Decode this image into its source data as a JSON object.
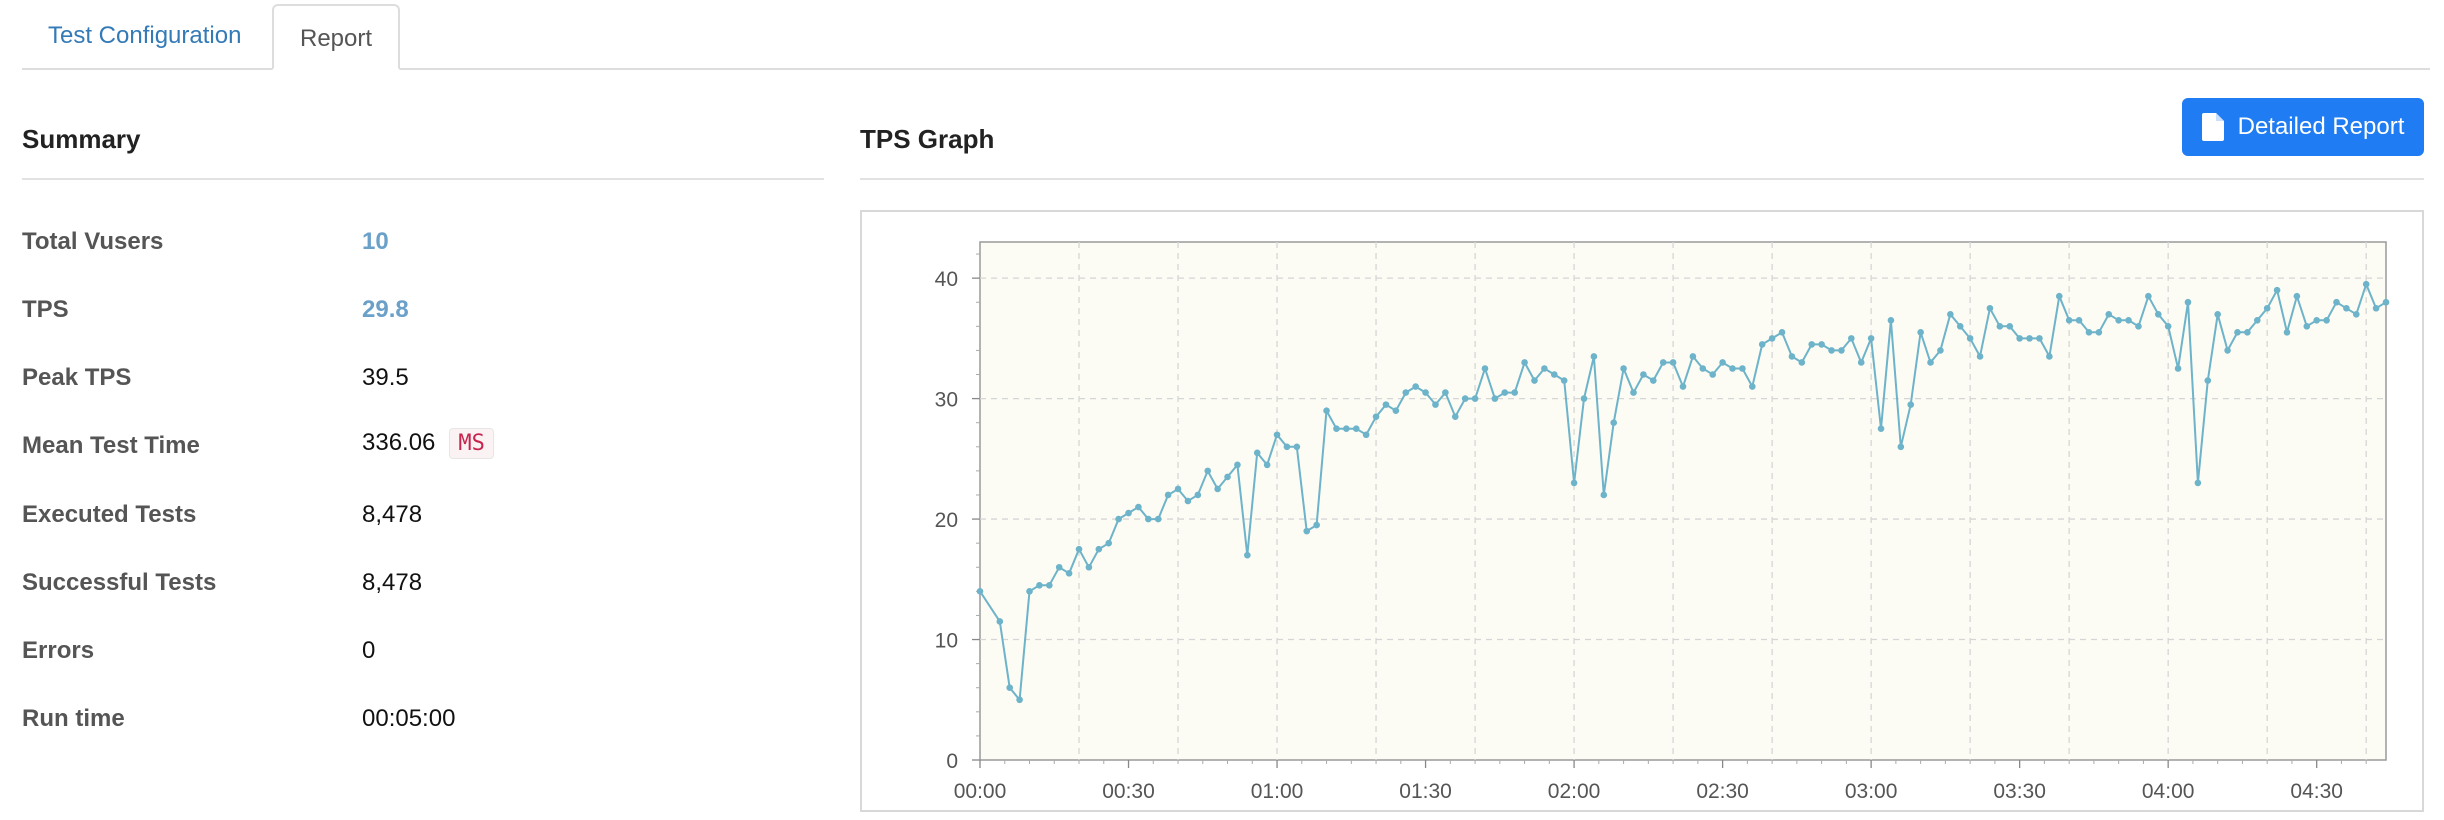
{
  "tabs": [
    {
      "label": "Test Configuration",
      "active": false
    },
    {
      "label": "Report",
      "active": true
    }
  ],
  "summary": {
    "title": "Summary",
    "rows": [
      {
        "label": "Total Vusers",
        "value": "10"
      },
      {
        "label": "TPS",
        "value": "29.8"
      },
      {
        "label": "Peak TPS",
        "value": "39.5"
      },
      {
        "label": "Mean Test Time",
        "value": "336.06",
        "unit": "MS"
      },
      {
        "label": "Executed Tests",
        "value": "8,478"
      },
      {
        "label": "Successful Tests",
        "value": "8,478"
      },
      {
        "label": "Errors",
        "value": "0"
      },
      {
        "label": "Run time",
        "value": "00:05:00"
      }
    ]
  },
  "graph": {
    "title": "TPS Graph",
    "button_label": "Detailed Report",
    "button_icon": "document-icon",
    "accent_color": "#1f7cf2",
    "line_color": "#6db3c9"
  },
  "chart_data": {
    "type": "line",
    "title": "",
    "xlabel": "",
    "ylabel": "",
    "x_unit": "seconds",
    "xlim": [
      0,
      284
    ],
    "ylim": [
      0,
      43
    ],
    "grid": true,
    "x_ticks": [
      {
        "value": 0,
        "label": "00:00"
      },
      {
        "value": 30,
        "label": "00:30"
      },
      {
        "value": 60,
        "label": "01:00"
      },
      {
        "value": 90,
        "label": "01:30"
      },
      {
        "value": 120,
        "label": "02:00"
      },
      {
        "value": 150,
        "label": "02:30"
      },
      {
        "value": 180,
        "label": "03:00"
      },
      {
        "value": 210,
        "label": "03:30"
      },
      {
        "value": 240,
        "label": "04:00"
      },
      {
        "value": 270,
        "label": "04:30"
      }
    ],
    "y_ticks": [
      0,
      10,
      20,
      30,
      40
    ],
    "series": [
      {
        "x": [
          0,
          4,
          6,
          8,
          10,
          12,
          14,
          16,
          18,
          20,
          22,
          24,
          26,
          28,
          30,
          32,
          34,
          36,
          38,
          40,
          42,
          44,
          46,
          48,
          50,
          52,
          54,
          56,
          58,
          60,
          62,
          64,
          66,
          68,
          70,
          72,
          74,
          76,
          78,
          80,
          82,
          84,
          86,
          88,
          90,
          92,
          94,
          96,
          98,
          100,
          102,
          104,
          106,
          108,
          110,
          112,
          114,
          116,
          118,
          120,
          122,
          124,
          126,
          128,
          130,
          132,
          134,
          136,
          138,
          140,
          142,
          144,
          146,
          148,
          150,
          152,
          154,
          156,
          158,
          160,
          162,
          164,
          166,
          168,
          170,
          172,
          174,
          176,
          178,
          180,
          182,
          184,
          186,
          188,
          190,
          192,
          194,
          196,
          198,
          200,
          202,
          204,
          206,
          208,
          210,
          212,
          214,
          216,
          218,
          220,
          222,
          224,
          226,
          228,
          230,
          232,
          234,
          236,
          238,
          240,
          242,
          244,
          246,
          248,
          250,
          252,
          254,
          256,
          258,
          260,
          262,
          264,
          266,
          268,
          270,
          272,
          274,
          276,
          278,
          280,
          282,
          284
        ],
        "values": [
          14,
          11.5,
          6,
          5,
          14,
          14.5,
          14.5,
          16,
          15.5,
          17.5,
          16,
          17.5,
          18,
          20,
          20.5,
          21,
          20,
          20,
          22,
          22.5,
          21.5,
          22,
          24,
          22.5,
          23.5,
          24.5,
          17,
          25.5,
          24.5,
          27,
          26,
          26,
          19,
          19.5,
          29,
          27.5,
          27.5,
          27.5,
          27,
          28.5,
          29.5,
          29,
          30.5,
          31,
          30.5,
          29.5,
          30.5,
          28.5,
          30,
          30,
          32.5,
          30,
          30.5,
          30.5,
          33,
          31.5,
          32.5,
          32,
          31.5,
          23,
          30,
          33.5,
          22,
          28,
          32.5,
          30.5,
          32,
          31.5,
          33,
          33,
          31,
          33.5,
          32.5,
          32,
          33,
          32.5,
          32.5,
          31,
          34.5,
          35,
          35.5,
          33.5,
          33,
          34.5,
          34.5,
          34,
          34,
          35,
          33,
          35,
          27.5,
          36.5,
          26,
          29.5,
          35.5,
          33,
          34,
          37,
          36,
          35,
          33.5,
          37.5,
          36,
          36,
          35,
          35,
          35,
          33.5,
          38.5,
          36.5,
          36.5,
          35.5,
          35.5,
          37,
          36.5,
          36.5,
          36,
          38.5,
          37,
          36,
          32.5,
          38,
          23,
          31.5,
          37,
          34,
          35.5,
          35.5,
          36.5,
          37.5,
          39,
          35.5,
          38.5,
          36,
          36.5,
          36.5,
          38,
          37.5,
          37,
          39.5,
          37.5,
          38
        ]
      }
    ]
  }
}
